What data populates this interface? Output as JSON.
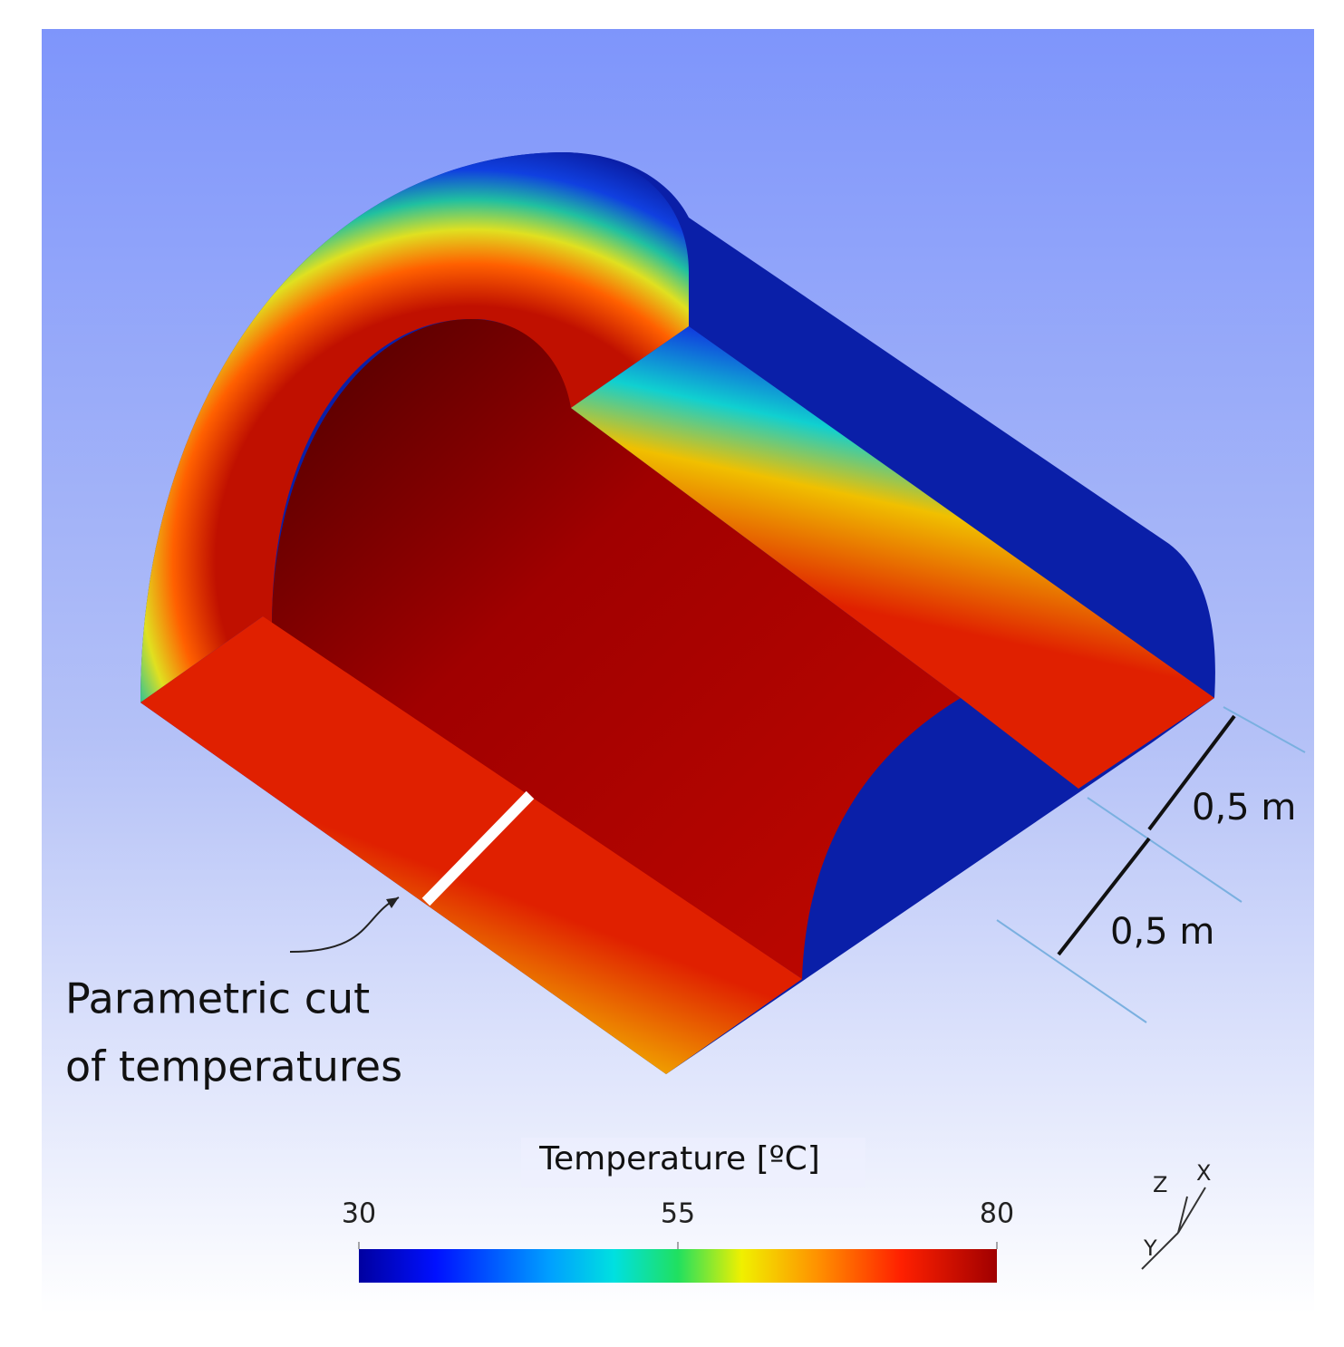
{
  "annotation": {
    "lines": [
      "Parametric cut",
      "of temperatures"
    ]
  },
  "dimensions": [
    "0,5 m",
    "0,5 m"
  ],
  "colorbar": {
    "title": "Temperature [ºC]",
    "range": [
      30,
      80
    ],
    "ticks": [
      30,
      55,
      80
    ]
  },
  "axes": [
    "Z",
    "X",
    "Y"
  ]
}
